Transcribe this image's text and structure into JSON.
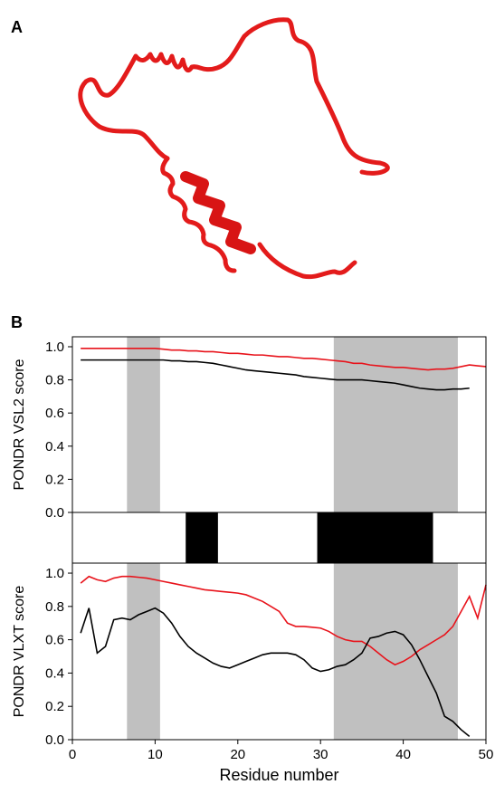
{
  "panel_labels": [
    "A",
    "B"
  ],
  "chart_data": [
    {
      "type": "line",
      "ylabel": "PONDR VSL2 score",
      "x": [
        1,
        2,
        3,
        4,
        5,
        6,
        7,
        8,
        9,
        10,
        11,
        12,
        13,
        14,
        15,
        16,
        17,
        18,
        19,
        20,
        21,
        22,
        23,
        24,
        25,
        26,
        27,
        28,
        29,
        30,
        31,
        32,
        33,
        34,
        35,
        36,
        37,
        38,
        39,
        40,
        41,
        42,
        43,
        44,
        45,
        46,
        47,
        48,
        49,
        50
      ],
      "xlim": [
        0,
        50
      ],
      "ylim": [
        0,
        1.06
      ],
      "yticks": [
        {
          "value": 0,
          "label": "0.0"
        },
        0.2,
        0.4,
        0.6,
        0.8,
        {
          "value": 1,
          "label": "1.0"
        }
      ],
      "shaded_regions": [
        [
          6.6,
          10.6
        ],
        [
          31.6,
          46.6
        ]
      ],
      "shade_color": "#c0c0c0",
      "series": [
        {
          "color": "#e8131b",
          "values": [
            0.99,
            0.99,
            0.99,
            0.99,
            0.99,
            0.99,
            0.99,
            0.99,
            0.99,
            0.99,
            0.985,
            0.98,
            0.98,
            0.975,
            0.975,
            0.97,
            0.97,
            0.965,
            0.96,
            0.96,
            0.955,
            0.95,
            0.95,
            0.945,
            0.94,
            0.94,
            0.935,
            0.93,
            0.93,
            0.925,
            0.92,
            0.915,
            0.91,
            0.9,
            0.9,
            0.89,
            0.885,
            0.88,
            0.875,
            0.875,
            0.87,
            0.865,
            0.86,
            0.865,
            0.865,
            0.87,
            0.88,
            0.89,
            0.885,
            0.88
          ]
        },
        {
          "color": "#000000",
          "values": [
            0.92,
            0.92,
            0.92,
            0.92,
            0.92,
            0.92,
            0.92,
            0.92,
            0.92,
            0.92,
            0.92,
            0.915,
            0.915,
            0.91,
            0.91,
            0.905,
            0.9,
            0.89,
            0.88,
            0.87,
            0.86,
            0.855,
            0.85,
            0.845,
            0.84,
            0.835,
            0.83,
            0.82,
            0.815,
            0.81,
            0.805,
            0.8,
            0.8,
            0.8,
            0.8,
            0.795,
            0.79,
            0.785,
            0.78,
            0.77,
            0.76,
            0.75,
            0.745,
            0.74,
            0.74,
            0.745,
            0.745,
            0.75,
            null,
            null
          ]
        }
      ]
    },
    {
      "type": "strip",
      "xlim": [
        0,
        50
      ],
      "color": "#000000",
      "spans": [
        [
          13.7,
          17.6
        ],
        [
          29.6,
          43.6
        ]
      ]
    },
    {
      "type": "line",
      "ylabel": "PONDR VLXT score",
      "xlabel": "Residue number",
      "x": [
        1,
        2,
        3,
        4,
        5,
        6,
        7,
        8,
        9,
        10,
        11,
        12,
        13,
        14,
        15,
        16,
        17,
        18,
        19,
        20,
        21,
        22,
        23,
        24,
        25,
        26,
        27,
        28,
        29,
        30,
        31,
        32,
        33,
        34,
        35,
        36,
        37,
        38,
        39,
        40,
        41,
        42,
        43,
        44,
        45,
        46,
        47,
        48,
        49,
        50
      ],
      "xlim": [
        0,
        50
      ],
      "ylim": [
        0,
        1.06
      ],
      "xticks": [
        0,
        10,
        20,
        30,
        40,
        50
      ],
      "yticks": [
        {
          "value": 0,
          "label": "0.0"
        },
        0.2,
        0.4,
        0.6,
        0.8,
        {
          "value": 1,
          "label": "1.0"
        }
      ],
      "shaded_regions": [
        [
          6.6,
          10.6
        ],
        [
          31.6,
          46.6
        ]
      ],
      "shade_color": "#c0c0c0",
      "series": [
        {
          "color": "#e8131b",
          "values": [
            0.94,
            0.98,
            0.96,
            0.95,
            0.97,
            0.98,
            0.98,
            0.975,
            0.97,
            0.96,
            0.95,
            0.94,
            0.93,
            0.92,
            0.91,
            0.9,
            0.895,
            0.89,
            0.885,
            0.88,
            0.87,
            0.85,
            0.83,
            0.8,
            0.77,
            0.7,
            0.68,
            0.68,
            0.675,
            0.67,
            0.65,
            0.62,
            0.6,
            0.59,
            0.59,
            0.56,
            0.52,
            0.48,
            0.45,
            0.47,
            0.5,
            0.54,
            0.57,
            0.6,
            0.63,
            0.68,
            0.77,
            0.86,
            0.73,
            0.93
          ]
        },
        {
          "color": "#000000",
          "values": [
            0.64,
            0.79,
            0.52,
            0.56,
            0.72,
            0.73,
            0.72,
            0.75,
            0.77,
            0.79,
            0.76,
            0.7,
            0.62,
            0.56,
            0.52,
            0.49,
            0.46,
            0.44,
            0.43,
            0.45,
            0.47,
            0.49,
            0.51,
            0.52,
            0.52,
            0.52,
            0.51,
            0.48,
            0.43,
            0.41,
            0.42,
            0.44,
            0.45,
            0.48,
            0.52,
            0.61,
            0.62,
            0.64,
            0.65,
            0.63,
            0.57,
            0.48,
            0.38,
            0.28,
            0.14,
            0.11,
            0.06,
            0.02,
            null,
            null
          ]
        }
      ]
    }
  ]
}
